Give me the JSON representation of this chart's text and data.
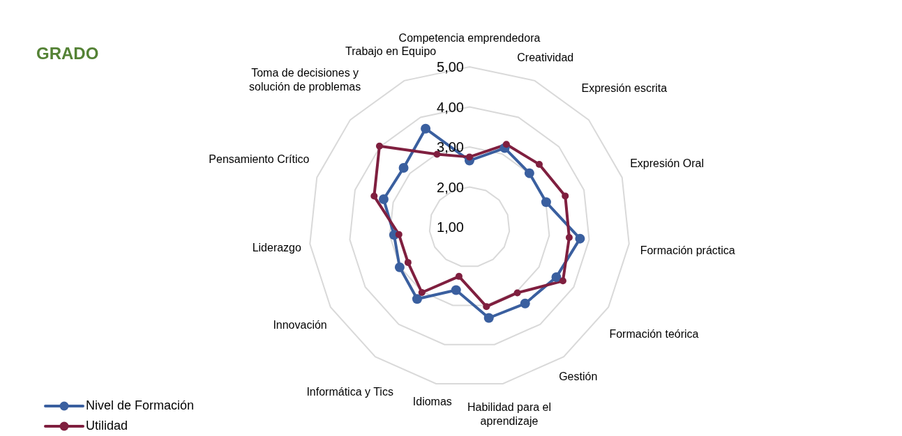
{
  "chart_data": {
    "type": "radar",
    "title": "GRADO",
    "categories": [
      "Competencia emprendedora",
      "Creatividad",
      "Expresión escrita",
      "Expresión Oral",
      "Formación práctica",
      "Formación teórica",
      "Gestión",
      "Habilidad para el aprendizaje",
      "Idiomas",
      "Informática y Tics",
      "Innovación",
      "Liderazgo",
      "Pensamiento Crítico",
      "Toma de decisiones y solución de problemas",
      "Trabajo en Equipo"
    ],
    "series": [
      {
        "name": "Nivel de Formación",
        "color": "#3a5f9f",
        "values": [
          2.66,
          3.16,
          3.01,
          3.01,
          3.77,
          3.5,
          3.36,
          3.32,
          2.61,
          3.22,
          3.01,
          2.89,
          3.25,
          3.21,
          3.69
        ]
      },
      {
        "name": "Utilidad",
        "color": "#7f1f3f",
        "values": [
          2.75,
          3.26,
          3.34,
          3.51,
          3.5,
          3.69,
          3.03,
          3.03,
          2.26,
          3.02,
          2.77,
          2.77,
          3.5,
          4.02,
          2.99
        ]
      }
    ],
    "ylim": [
      1,
      5
    ],
    "yticks": [
      {
        "value": 1,
        "label": "1,00"
      },
      {
        "value": 2,
        "label": "2,00"
      },
      {
        "value": 3,
        "label": "3,00"
      },
      {
        "value": 4,
        "label": "4,00"
      },
      {
        "value": 5,
        "label": "5,00"
      }
    ],
    "grid": true,
    "legend": "bottom left",
    "marker": "circle",
    "line_style": "solid"
  }
}
